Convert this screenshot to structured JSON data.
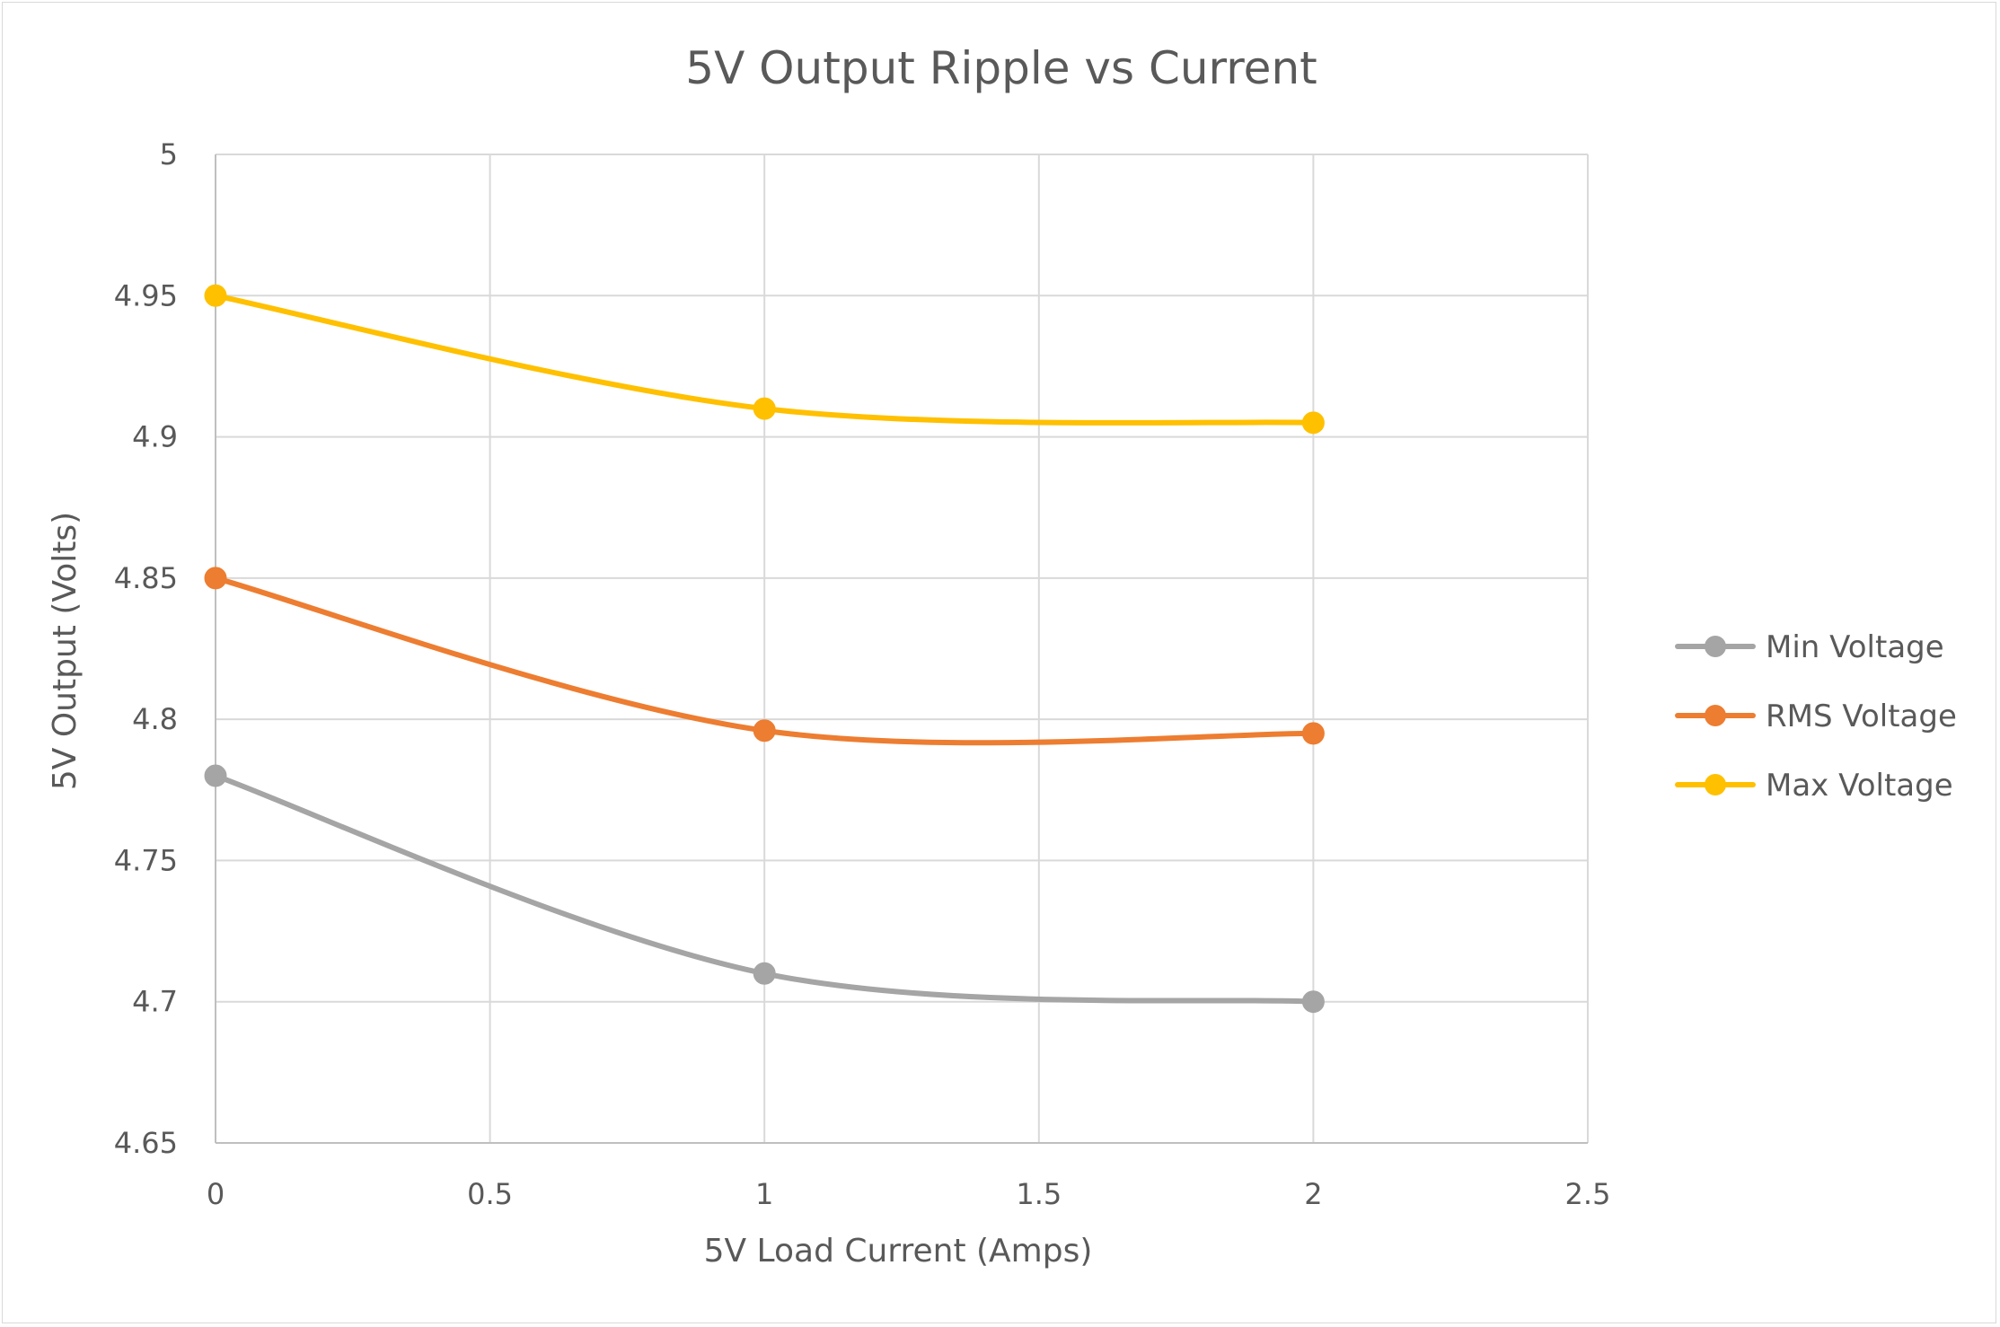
{
  "chart_data": {
    "type": "line",
    "title": "5V Output Ripple vs Current",
    "xlabel": "5V Load Current (Amps)",
    "ylabel": "5V Output (Volts)",
    "xlim": [
      0,
      2.5
    ],
    "ylim": [
      4.65,
      5
    ],
    "x_ticks": [
      0,
      0.5,
      1,
      1.5,
      2,
      2.5
    ],
    "y_ticks": [
      4.65,
      4.7,
      4.75,
      4.8,
      4.85,
      4.9,
      4.95,
      5
    ],
    "x_tick_labels": [
      "0",
      "0.5",
      "1",
      "1.5",
      "2",
      "2.5"
    ],
    "y_tick_labels": [
      "4.65",
      "4.7",
      "4.75",
      "4.8",
      "4.85",
      "4.9",
      "4.95",
      "5"
    ],
    "grid": true,
    "smoothed": true,
    "legend_position": "right",
    "x": [
      0,
      1,
      2
    ],
    "series": [
      {
        "name": "Min Voltage",
        "color": "#a5a5a5",
        "values": [
          4.78,
          4.71,
          4.7
        ]
      },
      {
        "name": "RMS Voltage",
        "color": "#ed7d31",
        "values": [
          4.85,
          4.796,
          4.795
        ]
      },
      {
        "name": "Max Voltage",
        "color": "#ffc000",
        "values": [
          4.95,
          4.91,
          4.905
        ]
      }
    ]
  }
}
